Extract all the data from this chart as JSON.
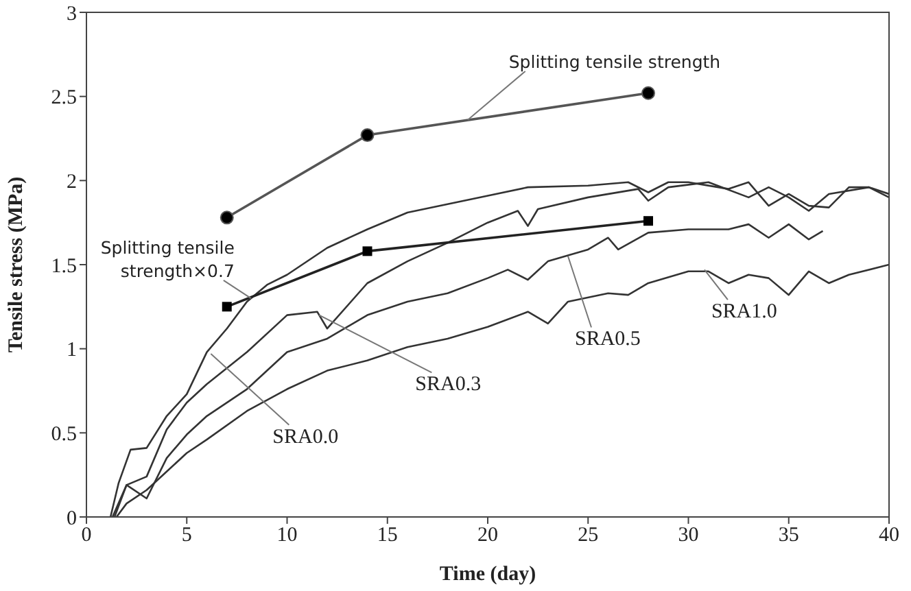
{
  "chart_data": {
    "type": "line",
    "xlabel": "Time (day)",
    "ylabel": "Tensile stress (MPa)",
    "xlim": [
      0,
      40
    ],
    "ylim": [
      0,
      3
    ],
    "xticks": [
      0,
      5,
      10,
      15,
      20,
      25,
      30,
      35,
      40
    ],
    "yticks": [
      0,
      0.5,
      1,
      1.5,
      2,
      2.5,
      3
    ],
    "line_style": "solid",
    "series": [
      {
        "color": "#333333",
        "marker": "none",
        "x": [
          1.2,
          1.6,
          2.2,
          3,
          4,
          5,
          6,
          7,
          8,
          9,
          10,
          12,
          14,
          16,
          18,
          20,
          22,
          25,
          27,
          28,
          29,
          30,
          32,
          33,
          34,
          35,
          36,
          37,
          38,
          39,
          40
        ],
        "values": [
          0,
          0.2,
          0.4,
          0.41,
          0.6,
          0.73,
          0.98,
          1.12,
          1.28,
          1.38,
          1.44,
          1.6,
          1.71,
          1.81,
          1.86,
          1.91,
          1.96,
          1.97,
          1.99,
          1.93,
          1.99,
          1.99,
          1.95,
          1.99,
          1.85,
          1.92,
          1.85,
          1.84,
          1.96,
          1.96,
          1.9
        ]
      },
      {
        "color": "#333333",
        "marker": "none",
        "x": [
          1.3,
          2,
          3,
          4,
          5,
          6,
          8,
          10,
          11.5,
          12,
          14,
          16,
          18,
          20,
          21.5,
          22,
          22.5,
          25,
          27.5,
          28,
          29,
          31,
          33,
          34,
          35,
          36,
          37,
          39,
          40
        ],
        "values": [
          0,
          0.19,
          0.24,
          0.52,
          0.68,
          0.79,
          0.98,
          1.2,
          1.22,
          1.12,
          1.39,
          1.52,
          1.63,
          1.75,
          1.82,
          1.73,
          1.83,
          1.9,
          1.95,
          1.88,
          1.96,
          1.99,
          1.9,
          1.96,
          1.9,
          1.82,
          1.92,
          1.96,
          1.92
        ]
      },
      {
        "color": "#333333",
        "marker": "none",
        "x": [
          1.4,
          2,
          3,
          4,
          5,
          6,
          8,
          10,
          12,
          14,
          16,
          18,
          20,
          21,
          22,
          23,
          25,
          26,
          26.5,
          28,
          30,
          32,
          33,
          34,
          35,
          36,
          36.7
        ],
        "values": [
          0,
          0.19,
          0.11,
          0.35,
          0.49,
          0.6,
          0.76,
          0.98,
          1.06,
          1.2,
          1.28,
          1.33,
          1.42,
          1.47,
          1.41,
          1.52,
          1.59,
          1.66,
          1.59,
          1.69,
          1.71,
          1.71,
          1.74,
          1.66,
          1.74,
          1.65,
          1.7
        ]
      },
      {
        "color": "#333333",
        "marker": "none",
        "x": [
          1.5,
          2,
          3,
          4,
          5,
          6,
          8,
          10,
          12,
          14,
          16,
          18,
          20,
          22,
          23,
          24,
          26,
          27,
          28,
          30,
          31,
          32,
          33,
          34,
          35,
          36,
          37,
          38,
          40
        ],
        "values": [
          0,
          0.08,
          0.16,
          0.27,
          0.38,
          0.46,
          0.63,
          0.76,
          0.87,
          0.93,
          1.01,
          1.06,
          1.13,
          1.22,
          1.15,
          1.28,
          1.33,
          1.32,
          1.39,
          1.46,
          1.46,
          1.39,
          1.44,
          1.42,
          1.32,
          1.46,
          1.39,
          1.44,
          1.5
        ]
      },
      {
        "color": "#555555",
        "marker": "circle",
        "x": [
          7,
          14,
          28
        ],
        "values": [
          1.78,
          2.27,
          2.52
        ]
      },
      {
        "color": "#222222",
        "marker": "square",
        "x": [
          7,
          14,
          28
        ],
        "values": [
          1.25,
          1.58,
          1.76
        ]
      }
    ],
    "annotations": [
      {
        "text": "Splitting tensile strength",
        "x": 19,
        "y": 2.36
      },
      {
        "text": "Splitting tensile strength×0.7",
        "x": 8.2,
        "y": 1.3
      },
      {
        "text": "SRA0.0",
        "x": 6.2,
        "y": 0.97
      },
      {
        "text": "SRA0.3",
        "x": 11.6,
        "y": 1.2
      },
      {
        "text": "SRA0.5",
        "x": 24,
        "y": 1.55
      },
      {
        "text": "SRA1.0",
        "x": 30.8,
        "y": 1.47
      }
    ]
  }
}
